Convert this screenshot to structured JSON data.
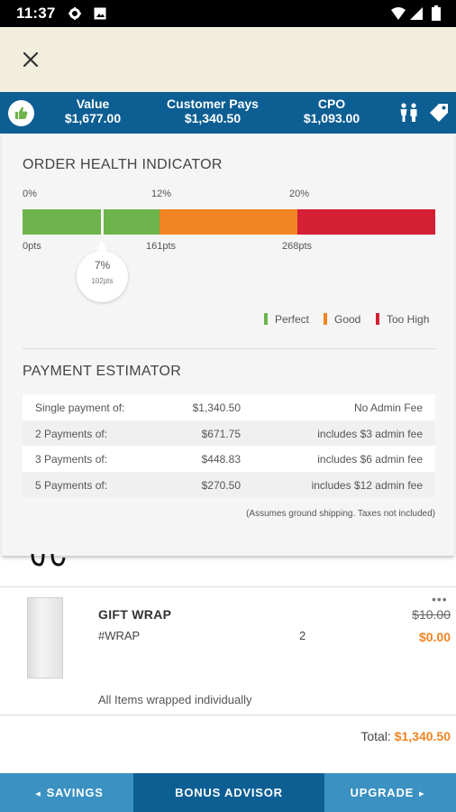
{
  "status_bar": {
    "time": "11:37"
  },
  "summary": {
    "value_label": "Value",
    "value": "$1,677.00",
    "customer_pays_label": "Customer Pays",
    "customer_pays": "$1,340.50",
    "cpo_label": "CPO",
    "cpo": "$1,093.00"
  },
  "order_health": {
    "title": "ORDER HEALTH INDICATOR",
    "percent_ticks": [
      "0%",
      "12%",
      "20%"
    ],
    "points_ticks": [
      "0pts",
      "161pts",
      "268pts"
    ],
    "current_percent": "7%",
    "current_points": "102pts",
    "legend": {
      "perfect": "Perfect",
      "good": "Good",
      "too_high": "Too High"
    },
    "colors": {
      "perfect": "#6db44c",
      "good": "#f18423",
      "too_high": "#d51f35"
    }
  },
  "payment_estimator": {
    "title": "PAYMENT ESTIMATOR",
    "rows": [
      {
        "label": "Single payment of:",
        "amount": "$1,340.50",
        "fee": "No Admin Fee"
      },
      {
        "label": "2 Payments of:",
        "amount": "$671.75",
        "fee": "includes $3 admin fee"
      },
      {
        "label": "3 Payments of:",
        "amount": "$448.83",
        "fee": "includes $6 admin fee"
      },
      {
        "label": "5 Payments of:",
        "amount": "$270.50",
        "fee": "includes $12 admin fee"
      }
    ],
    "note": "(Assumes ground shipping. Taxes not included)"
  },
  "item": {
    "name": "GIFT WRAP",
    "sku": "#WRAP",
    "quantity": "2",
    "original_price": "$10.00",
    "price": "$0.00",
    "note": "All Items wrapped individually"
  },
  "total": {
    "label": "Total:",
    "amount": "$1,340.50"
  },
  "bottom_nav": {
    "savings": "SAVINGS",
    "bonus_advisor": "BONUS ADVISOR",
    "upgrade": "UPGRADE"
  }
}
